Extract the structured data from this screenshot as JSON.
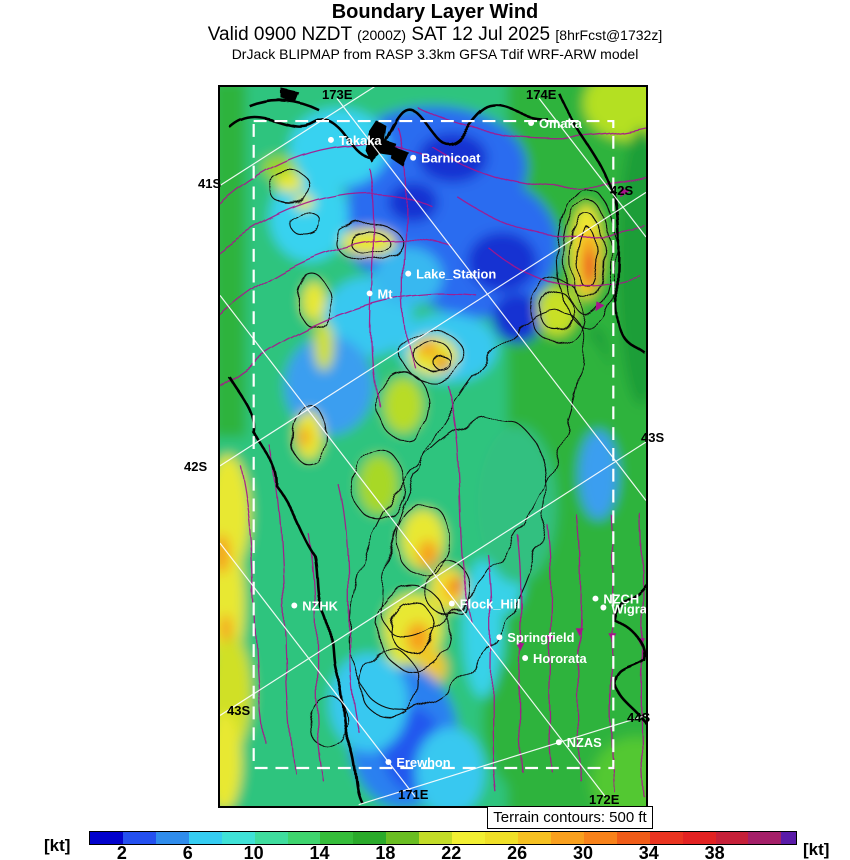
{
  "header": {
    "title": "Boundary Layer Wind",
    "valid_prefix": "Valid 0900 NZDT",
    "valid_z": "(2000Z)",
    "valid_date": "SAT 12 Jul 2025",
    "valid_fcst": "[8hrFcst@1732z]",
    "model_line": "DrJack BLIPMAP from RASP 3.3km GFSA Tdif WRF-ARW model"
  },
  "map": {
    "terrain_note": "Terrain contours: 500 ft",
    "grid_labels": {
      "e173": "173E",
      "e174": "174E",
      "s41": "41S",
      "s42_right": "42S",
      "s42_left": "42S",
      "s43_right": "43S",
      "s43_left": "43S",
      "s44": "44S",
      "e171": "171E",
      "e172": "172E"
    },
    "stations": [
      {
        "name": "Takaka"
      },
      {
        "name": "Barnicoat"
      },
      {
        "name": "Omaka"
      },
      {
        "name": "Lake_Station"
      },
      {
        "name": "Mt"
      },
      {
        "name": "NZHK"
      },
      {
        "name": "Flock_Hill"
      },
      {
        "name": "NZCH"
      },
      {
        "name": "Wigram"
      },
      {
        "name": "Springfield"
      },
      {
        "name": "Hororata"
      },
      {
        "name": "NZAS"
      },
      {
        "name": "Erewhon"
      }
    ]
  },
  "colorbar": {
    "unit_left": "[kt]",
    "unit_right": "[kt]",
    "ticks": [
      "2",
      "6",
      "10",
      "14",
      "18",
      "22",
      "26",
      "30",
      "34",
      "38"
    ],
    "max_value": 43,
    "colors": [
      "#0202cc",
      "#2450f0",
      "#2f8cec",
      "#35cdf2",
      "#3fe2d7",
      "#3fdd9e",
      "#3ed46e",
      "#35bd3a",
      "#2aaa2a",
      "#6abe22",
      "#c3dc28",
      "#f2ef33",
      "#f0e028",
      "#f6c122",
      "#f9a01e",
      "#f8821a",
      "#f05c18",
      "#ea3420",
      "#e32222",
      "#c62039",
      "#a41f68",
      "#5a1ba8"
    ]
  },
  "colors": {
    "streamline": "#a8148c",
    "terrain_contour": "#111111",
    "graticule": "#ffffff",
    "coastline": "#000000"
  },
  "chart_data": {
    "type": "heatmap",
    "title": "Boundary Layer Wind",
    "units": "kt",
    "legend_position": "bottom",
    "scale_ticks": [
      2,
      6,
      10,
      14,
      18,
      22,
      26,
      30,
      34,
      38
    ],
    "scale_range": [
      0,
      43
    ],
    "notes": "Wind-speed colour field over South Island NZ with terrain contours (black), streamlines (magenta), lat/lon graticule (white) and dashed model sub-domain box."
  }
}
